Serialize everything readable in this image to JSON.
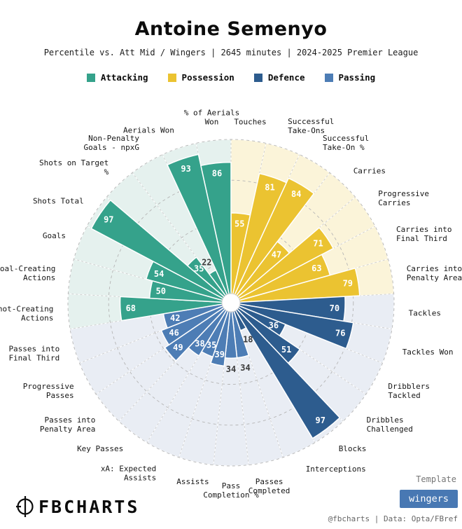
{
  "header": {
    "title": "Antoine Semenyo",
    "subtitle": "Percentile vs. Att Mid / Wingers | 2645 minutes | 2024-2025 Premier League"
  },
  "legend": {
    "items": [
      {
        "label": "Attacking",
        "color": "#35a28b"
      },
      {
        "label": "Possession",
        "color": "#ebc331"
      },
      {
        "label": "Defence",
        "color": "#2d5c8e"
      },
      {
        "label": "Passing",
        "color": "#4d7db5"
      }
    ]
  },
  "chart_data": {
    "type": "pizza",
    "title": "Antoine Semenyo",
    "subtitle": "Percentile vs. Att Mid / Wingers | 2645 minutes | 2024-2025 Premier League",
    "max": 100,
    "rings": [
      25,
      50,
      75,
      100
    ],
    "grid": "dashed",
    "groups": {
      "Attacking": {
        "color": "#35a28b",
        "bg": "#e5f1ee"
      },
      "Possession": {
        "color": "#ebc331",
        "bg": "#fbf4d9"
      },
      "Defence": {
        "color": "#2d5c8e",
        "bg": "#e9edf4"
      },
      "Passing": {
        "color": "#4d7db5",
        "bg": "#e9edf4"
      }
    },
    "slices": [
      {
        "label": "Touches",
        "label_lines": [
          "Touches"
        ],
        "value": 55,
        "group": "Possession"
      },
      {
        "label": "Successful Take-Ons",
        "label_lines": [
          "Successful",
          "Take-Ons"
        ],
        "value": 81,
        "group": "Possession"
      },
      {
        "label": "Successful Take-On %",
        "label_lines": [
          "Successful",
          "Take-On %"
        ],
        "value": 84,
        "group": "Possession"
      },
      {
        "label": "Carries",
        "label_lines": [
          "Carries"
        ],
        "value": 47,
        "group": "Possession"
      },
      {
        "label": "Progressive Carries",
        "label_lines": [
          "Progressive",
          "Carries"
        ],
        "value": 71,
        "group": "Possession"
      },
      {
        "label": "Carries into Final Third",
        "label_lines": [
          "Carries into",
          "Final Third"
        ],
        "value": 63,
        "group": "Possession"
      },
      {
        "label": "Carries into Penalty Area",
        "label_lines": [
          "Carries into",
          "Penalty Area"
        ],
        "value": 79,
        "group": "Possession"
      },
      {
        "label": "Tackles",
        "label_lines": [
          "Tackles"
        ],
        "value": 70,
        "group": "Defence"
      },
      {
        "label": "Tackles Won",
        "label_lines": [
          "Tackles Won"
        ],
        "value": 76,
        "group": "Defence"
      },
      {
        "label": "Dribblers Tackled",
        "label_lines": [
          "Dribblers",
          "Tackled"
        ],
        "value": 36,
        "group": "Defence"
      },
      {
        "label": "Dribbles Challenged",
        "label_lines": [
          "Dribbles",
          "Challenged"
        ],
        "value": 51,
        "group": "Defence"
      },
      {
        "label": "Blocks",
        "label_lines": [
          "Blocks"
        ],
        "value": 97,
        "group": "Defence"
      },
      {
        "label": "Interceptions",
        "label_lines": [
          "Interceptions"
        ],
        "value": 18,
        "group": "Defence"
      },
      {
        "label": "Passes Completed",
        "label_lines": [
          "Passes",
          "Completed"
        ],
        "value": 34,
        "group": "Passing"
      },
      {
        "label": "Pass Completion %",
        "label_lines": [
          "Pass",
          "Completion %"
        ],
        "value": 34,
        "group": "Passing"
      },
      {
        "label": "Assists",
        "label_lines": [
          "Assists"
        ],
        "value": 39,
        "group": "Passing"
      },
      {
        "label": "xA: Expected Assists",
        "label_lines": [
          "xA: Expected",
          "Assists"
        ],
        "value": 35,
        "group": "Passing"
      },
      {
        "label": "Key Passes",
        "label_lines": [
          "Key Passes"
        ],
        "value": 38,
        "group": "Passing"
      },
      {
        "label": "Passes into Penalty Area",
        "label_lines": [
          "Passes into",
          "Penalty Area"
        ],
        "value": 49,
        "group": "Passing"
      },
      {
        "label": "Progressive Passes",
        "label_lines": [
          "Progressive",
          "Passes"
        ],
        "value": 46,
        "group": "Passing"
      },
      {
        "label": "Passes into Final Third",
        "label_lines": [
          "Passes into",
          "Final Third"
        ],
        "value": 42,
        "group": "Passing"
      },
      {
        "label": "Shot-Creating Actions",
        "label_lines": [
          "Shot-Creating",
          "Actions"
        ],
        "value": 68,
        "group": "Attacking"
      },
      {
        "label": "Goal-Creating Actions",
        "label_lines": [
          "Goal-Creating",
          "Actions"
        ],
        "value": 50,
        "group": "Attacking"
      },
      {
        "label": "Goals",
        "label_lines": [
          "Goals"
        ],
        "value": 54,
        "group": "Attacking"
      },
      {
        "label": "Shots Total",
        "label_lines": [
          "Shots Total"
        ],
        "value": 97,
        "group": "Attacking"
      },
      {
        "label": "Shots on Target %",
        "label_lines": [
          "Shots on Target",
          "%"
        ],
        "value": 35,
        "group": "Attacking"
      },
      {
        "label": "Non-Penalty Goals - npxG",
        "label_lines": [
          "Non-Penalty",
          "Goals - npxG"
        ],
        "value": 22,
        "group": "Attacking"
      },
      {
        "label": "Aerials Won",
        "label_lines": [
          "Aerials Won"
        ],
        "value": 93,
        "group": "Attacking"
      },
      {
        "label": "% of Aerials Won",
        "label_lines": [
          "% of Aerials",
          "Won"
        ],
        "value": 86,
        "group": "Attacking"
      }
    ]
  },
  "footer": {
    "brand": "FBCHARTS",
    "logo_icon": "pizza-crosshair-icon",
    "template_label": "Template",
    "template_value": "wingers",
    "template_color": "#4878b3",
    "credit": "@fbcharts | Data: Opta/FBref"
  }
}
